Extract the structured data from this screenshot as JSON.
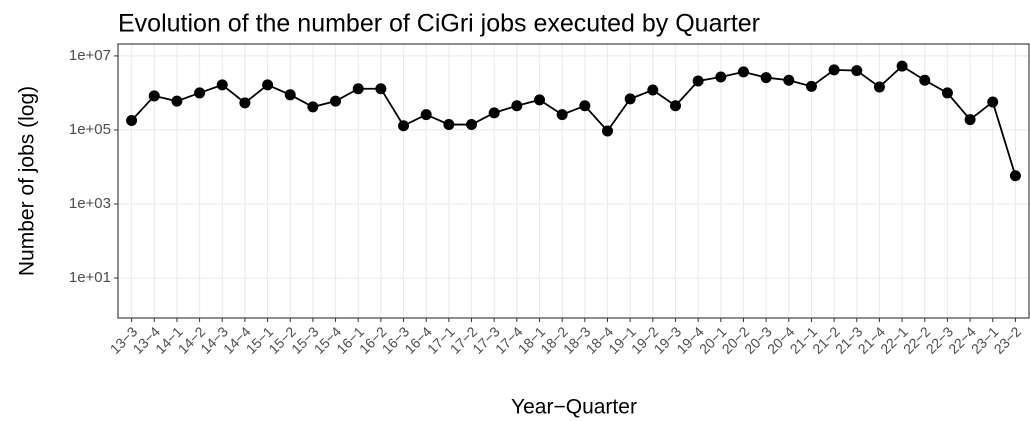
{
  "chart_data": {
    "type": "line",
    "title": "Evolution of the number of CiGri jobs executed by Quarter",
    "x_label": "Year−Quarter",
    "y_label": "Number of jobs (log)",
    "categories": [
      "13−3",
      "13−4",
      "14−1",
      "14−2",
      "14−3",
      "14−4",
      "15−1",
      "15−2",
      "15−3",
      "15−4",
      "16−1",
      "16−2",
      "16−3",
      "16−4",
      "17−1",
      "17−2",
      "17−3",
      "17−4",
      "18−1",
      "18−2",
      "18−3",
      "18−4",
      "19−1",
      "19−2",
      "19−3",
      "19−4",
      "20−1",
      "20−2",
      "20−3",
      "20−4",
      "21−1",
      "21−2",
      "21−3",
      "21−4",
      "22−1",
      "22−2",
      "22−3",
      "22−4",
      "23−1",
      "23−2"
    ],
    "series": [
      {
        "name": "jobs",
        "color": "#000000",
        "values": [
          180000,
          830000,
          600000,
          1000000,
          1650000,
          540000,
          1650000,
          890000,
          420000,
          600000,
          1300000,
          1300000,
          130000,
          260000,
          140000,
          140000,
          290000,
          450000,
          650000,
          260000,
          450000,
          94000,
          690000,
          1200000,
          450000,
          2100000,
          2700000,
          3700000,
          2600000,
          2200000,
          1500000,
          4200000,
          4000000,
          1450000,
          5300000,
          2200000,
          1000000,
          190000,
          570000,
          5800
        ]
      }
    ],
    "log_y": true,
    "ylim": [
      0.83,
      21000000
    ],
    "yticks": [
      {
        "value": 10,
        "label": "1e+01"
      },
      {
        "value": 1000,
        "label": "1e+03"
      },
      {
        "value": 100000,
        "label": "1e+05"
      },
      {
        "value": 10000000,
        "label": "1e+07"
      }
    ],
    "grid": true
  }
}
